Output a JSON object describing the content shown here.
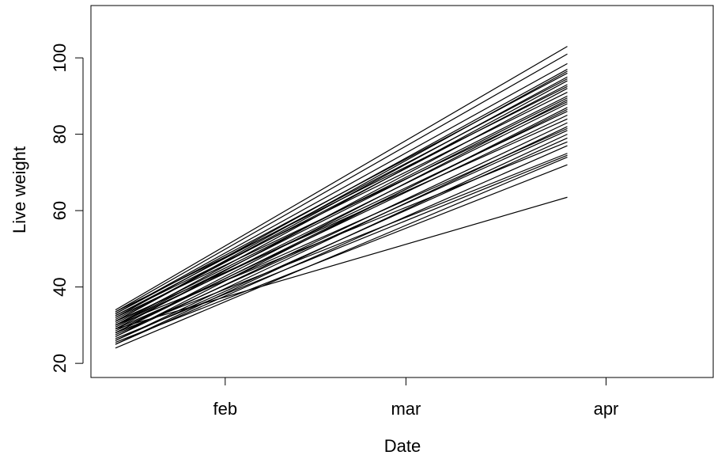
{
  "chart_data": {
    "type": "line",
    "xlabel": "Date",
    "ylabel": "Live weight",
    "color": "#000000",
    "x": [
      15,
      85
    ],
    "xlim": [
      11.2,
      107.6
    ],
    "xticks": [
      {
        "value": 32,
        "label": "feb"
      },
      {
        "value": 60,
        "label": "mar"
      },
      {
        "value": 91,
        "label": "apr"
      }
    ],
    "ylim": [
      16.3,
      113.7
    ],
    "yticks": [
      20,
      40,
      60,
      80,
      100
    ],
    "series": [
      {
        "values": [
          34,
          103
        ]
      },
      {
        "values": [
          33.5,
          101
        ]
      },
      {
        "values": [
          33,
          98.5
        ]
      },
      {
        "values": [
          32,
          97
        ]
      },
      {
        "values": [
          33,
          96
        ]
      },
      {
        "values": [
          31,
          95
        ]
      },
      {
        "values": [
          32.5,
          94.5
        ]
      },
      {
        "values": [
          30,
          94
        ]
      },
      {
        "values": [
          31.5,
          93
        ]
      },
      {
        "values": [
          29,
          92
        ]
      },
      {
        "values": [
          30.5,
          90
        ]
      },
      {
        "values": [
          28,
          89
        ]
      },
      {
        "values": [
          32,
          88.5
        ]
      },
      {
        "values": [
          29.5,
          88
        ]
      },
      {
        "values": [
          27,
          87
        ]
      },
      {
        "values": [
          30,
          86
        ]
      },
      {
        "values": [
          28.5,
          85
        ]
      },
      {
        "values": [
          31,
          84
        ]
      },
      {
        "values": [
          26,
          82
        ]
      },
      {
        "values": [
          29,
          81.5
        ]
      },
      {
        "values": [
          27.5,
          81
        ]
      },
      {
        "values": [
          25,
          80
        ]
      },
      {
        "values": [
          30,
          78
        ]
      },
      {
        "values": [
          28,
          75
        ]
      },
      {
        "values": [
          26.5,
          74.5
        ]
      },
      {
        "values": [
          24,
          74
        ]
      },
      {
        "values": [
          25.5,
          72
        ]
      },
      {
        "values": [
          29,
          63.5
        ]
      },
      {
        "values": [
          33.5,
          92.5
        ]
      },
      {
        "values": [
          32.5,
          91
        ]
      },
      {
        "values": [
          27,
          83
        ]
      },
      {
        "values": [
          26,
          79
        ]
      },
      {
        "values": [
          31,
          96.5
        ]
      },
      {
        "values": [
          28,
          86.5
        ]
      },
      {
        "values": [
          25,
          77
        ]
      },
      {
        "values": [
          30,
          89.5
        ]
      }
    ]
  }
}
